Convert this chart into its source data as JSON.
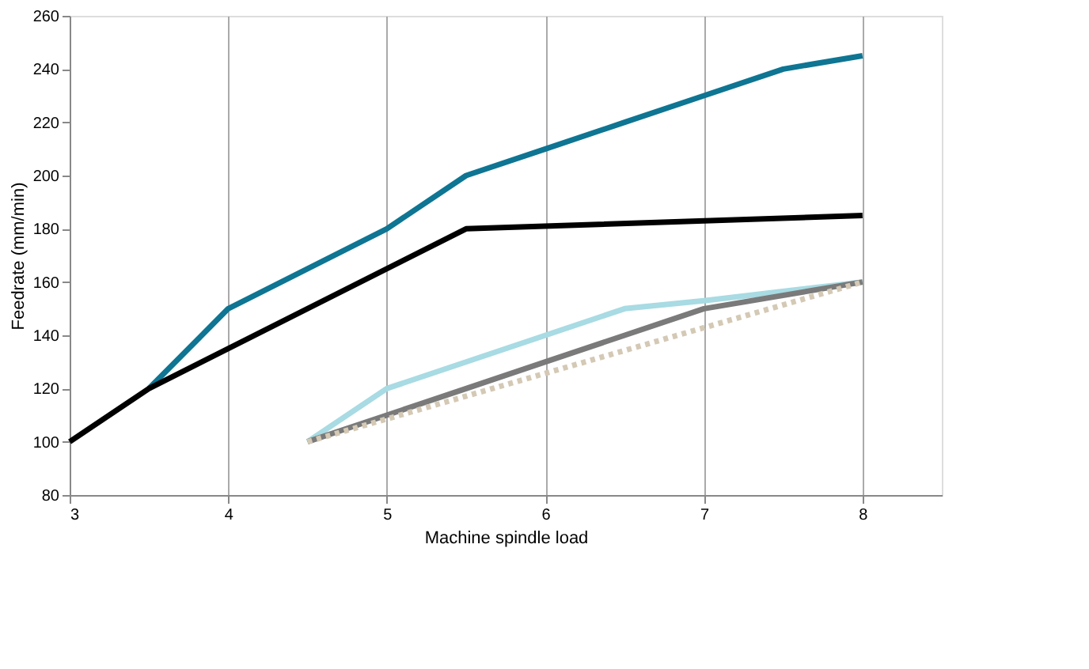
{
  "chart_data": {
    "type": "line",
    "xlabel": "Machine spindle load",
    "ylabel": "Feedrate (mm/min)",
    "xlim": [
      3,
      8.5
    ],
    "xticks": [
      3,
      4,
      5,
      6,
      7,
      8
    ],
    "ylim": [
      80,
      260
    ],
    "yticks": [
      80,
      100,
      120,
      140,
      160,
      180,
      200,
      220,
      240,
      260
    ],
    "grid": "x",
    "marker": "none",
    "series": [
      {
        "color": "#0e7593",
        "x": [
          3.5,
          4,
          5,
          5.5,
          6,
          6.5,
          7,
          7.5,
          8
        ],
        "values": [
          120,
          150,
          180,
          200,
          210,
          220,
          230,
          240,
          245
        ]
      },
      {
        "color": "#000000",
        "x": [
          3,
          3.5,
          5.5,
          8
        ],
        "values": [
          100,
          120,
          180,
          185
        ]
      },
      {
        "color": "#a8dbe3",
        "x": [
          4.5,
          5,
          6.5,
          7,
          8
        ],
        "values": [
          100,
          120,
          150,
          153,
          160
        ]
      },
      {
        "color": "#7a7a7a",
        "x": [
          4.5,
          5,
          5.5,
          6,
          6.5,
          7,
          8
        ],
        "values": [
          100,
          110,
          120,
          130,
          140,
          150,
          160
        ]
      },
      {
        "color": "#d4c9b5",
        "line_style": "dotted",
        "x": [
          4.5,
          8
        ],
        "values": [
          100,
          160
        ]
      }
    ]
  }
}
